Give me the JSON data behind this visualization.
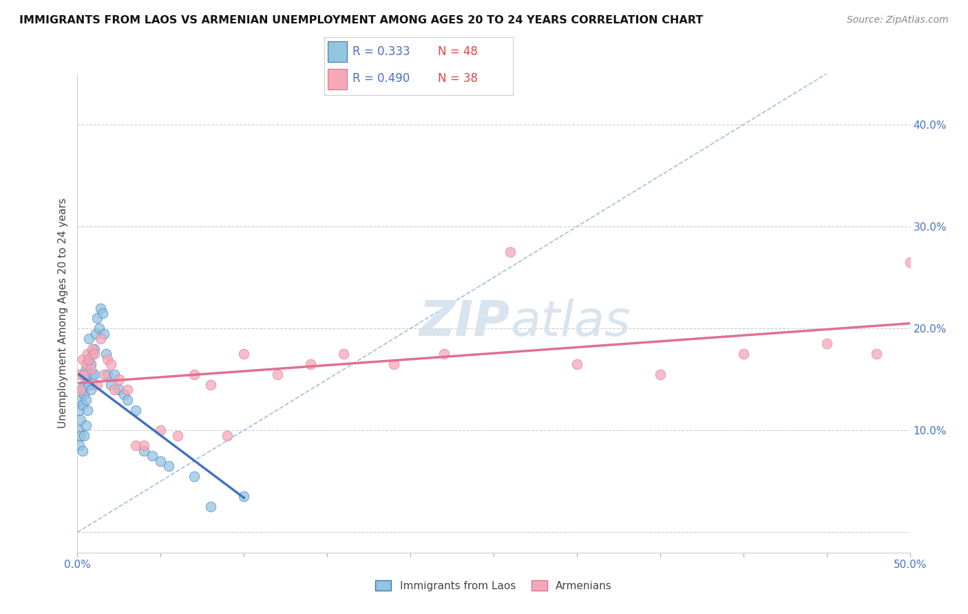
{
  "title": "IMMIGRANTS FROM LAOS VS ARMENIAN UNEMPLOYMENT AMONG AGES 20 TO 24 YEARS CORRELATION CHART",
  "source": "Source: ZipAtlas.com",
  "ylabel": "Unemployment Among Ages 20 to 24 years",
  "xlim": [
    0.0,
    0.5
  ],
  "ylim": [
    -0.02,
    0.45
  ],
  "xticks": [
    0.0,
    0.05,
    0.1,
    0.15,
    0.2,
    0.25,
    0.3,
    0.35,
    0.4,
    0.45,
    0.5
  ],
  "xticklabels": [
    "0.0%",
    "",
    "",
    "",
    "",
    "",
    "",
    "",
    "",
    "",
    "50.0%"
  ],
  "ytick_positions": [
    0.0,
    0.1,
    0.2,
    0.3,
    0.4
  ],
  "yticklabels": [
    "",
    "10.0%",
    "20.0%",
    "30.0%",
    "40.0%"
  ],
  "blue_R": "0.333",
  "blue_N": "48",
  "pink_R": "0.490",
  "pink_N": "38",
  "blue_color": "#92C5DE",
  "pink_color": "#F4A9B8",
  "regression_blue_color": "#4472C4",
  "regression_pink_color": "#E07090",
  "diagonal_color": "#95B8D8",
  "background_color": "#FFFFFF",
  "grid_color": "#CCCCCC",
  "watermark_color": "#D8E4EE",
  "legend_R_color": "#4472C4",
  "legend_N_color": "#E84040",
  "blue_x": [
    0.001,
    0.001,
    0.001,
    0.002,
    0.002,
    0.002,
    0.003,
    0.003,
    0.003,
    0.003,
    0.004,
    0.004,
    0.004,
    0.005,
    0.005,
    0.005,
    0.006,
    0.006,
    0.007,
    0.007,
    0.007,
    0.008,
    0.008,
    0.009,
    0.009,
    0.01,
    0.01,
    0.011,
    0.012,
    0.013,
    0.014,
    0.015,
    0.016,
    0.017,
    0.018,
    0.02,
    0.022,
    0.025,
    0.028,
    0.03,
    0.035,
    0.04,
    0.045,
    0.05,
    0.055,
    0.07,
    0.08,
    0.1
  ],
  "blue_y": [
    0.1,
    0.12,
    0.085,
    0.13,
    0.11,
    0.095,
    0.14,
    0.155,
    0.125,
    0.08,
    0.145,
    0.135,
    0.095,
    0.16,
    0.13,
    0.105,
    0.155,
    0.12,
    0.17,
    0.19,
    0.145,
    0.165,
    0.14,
    0.175,
    0.155,
    0.18,
    0.155,
    0.195,
    0.21,
    0.2,
    0.22,
    0.215,
    0.195,
    0.175,
    0.155,
    0.145,
    0.155,
    0.14,
    0.135,
    0.13,
    0.12,
    0.08,
    0.075,
    0.07,
    0.065,
    0.055,
    0.025,
    0.035
  ],
  "pink_x": [
    0.001,
    0.002,
    0.003,
    0.004,
    0.005,
    0.006,
    0.007,
    0.008,
    0.009,
    0.01,
    0.012,
    0.014,
    0.016,
    0.018,
    0.02,
    0.022,
    0.025,
    0.03,
    0.035,
    0.04,
    0.05,
    0.06,
    0.07,
    0.08,
    0.09,
    0.1,
    0.12,
    0.14,
    0.16,
    0.19,
    0.22,
    0.26,
    0.3,
    0.35,
    0.4,
    0.45,
    0.48,
    0.5
  ],
  "pink_y": [
    0.155,
    0.14,
    0.17,
    0.155,
    0.165,
    0.175,
    0.17,
    0.16,
    0.18,
    0.175,
    0.145,
    0.19,
    0.155,
    0.17,
    0.165,
    0.14,
    0.15,
    0.14,
    0.085,
    0.085,
    0.1,
    0.095,
    0.155,
    0.145,
    0.095,
    0.175,
    0.155,
    0.165,
    0.175,
    0.165,
    0.175,
    0.275,
    0.165,
    0.155,
    0.175,
    0.185,
    0.175,
    0.265
  ]
}
